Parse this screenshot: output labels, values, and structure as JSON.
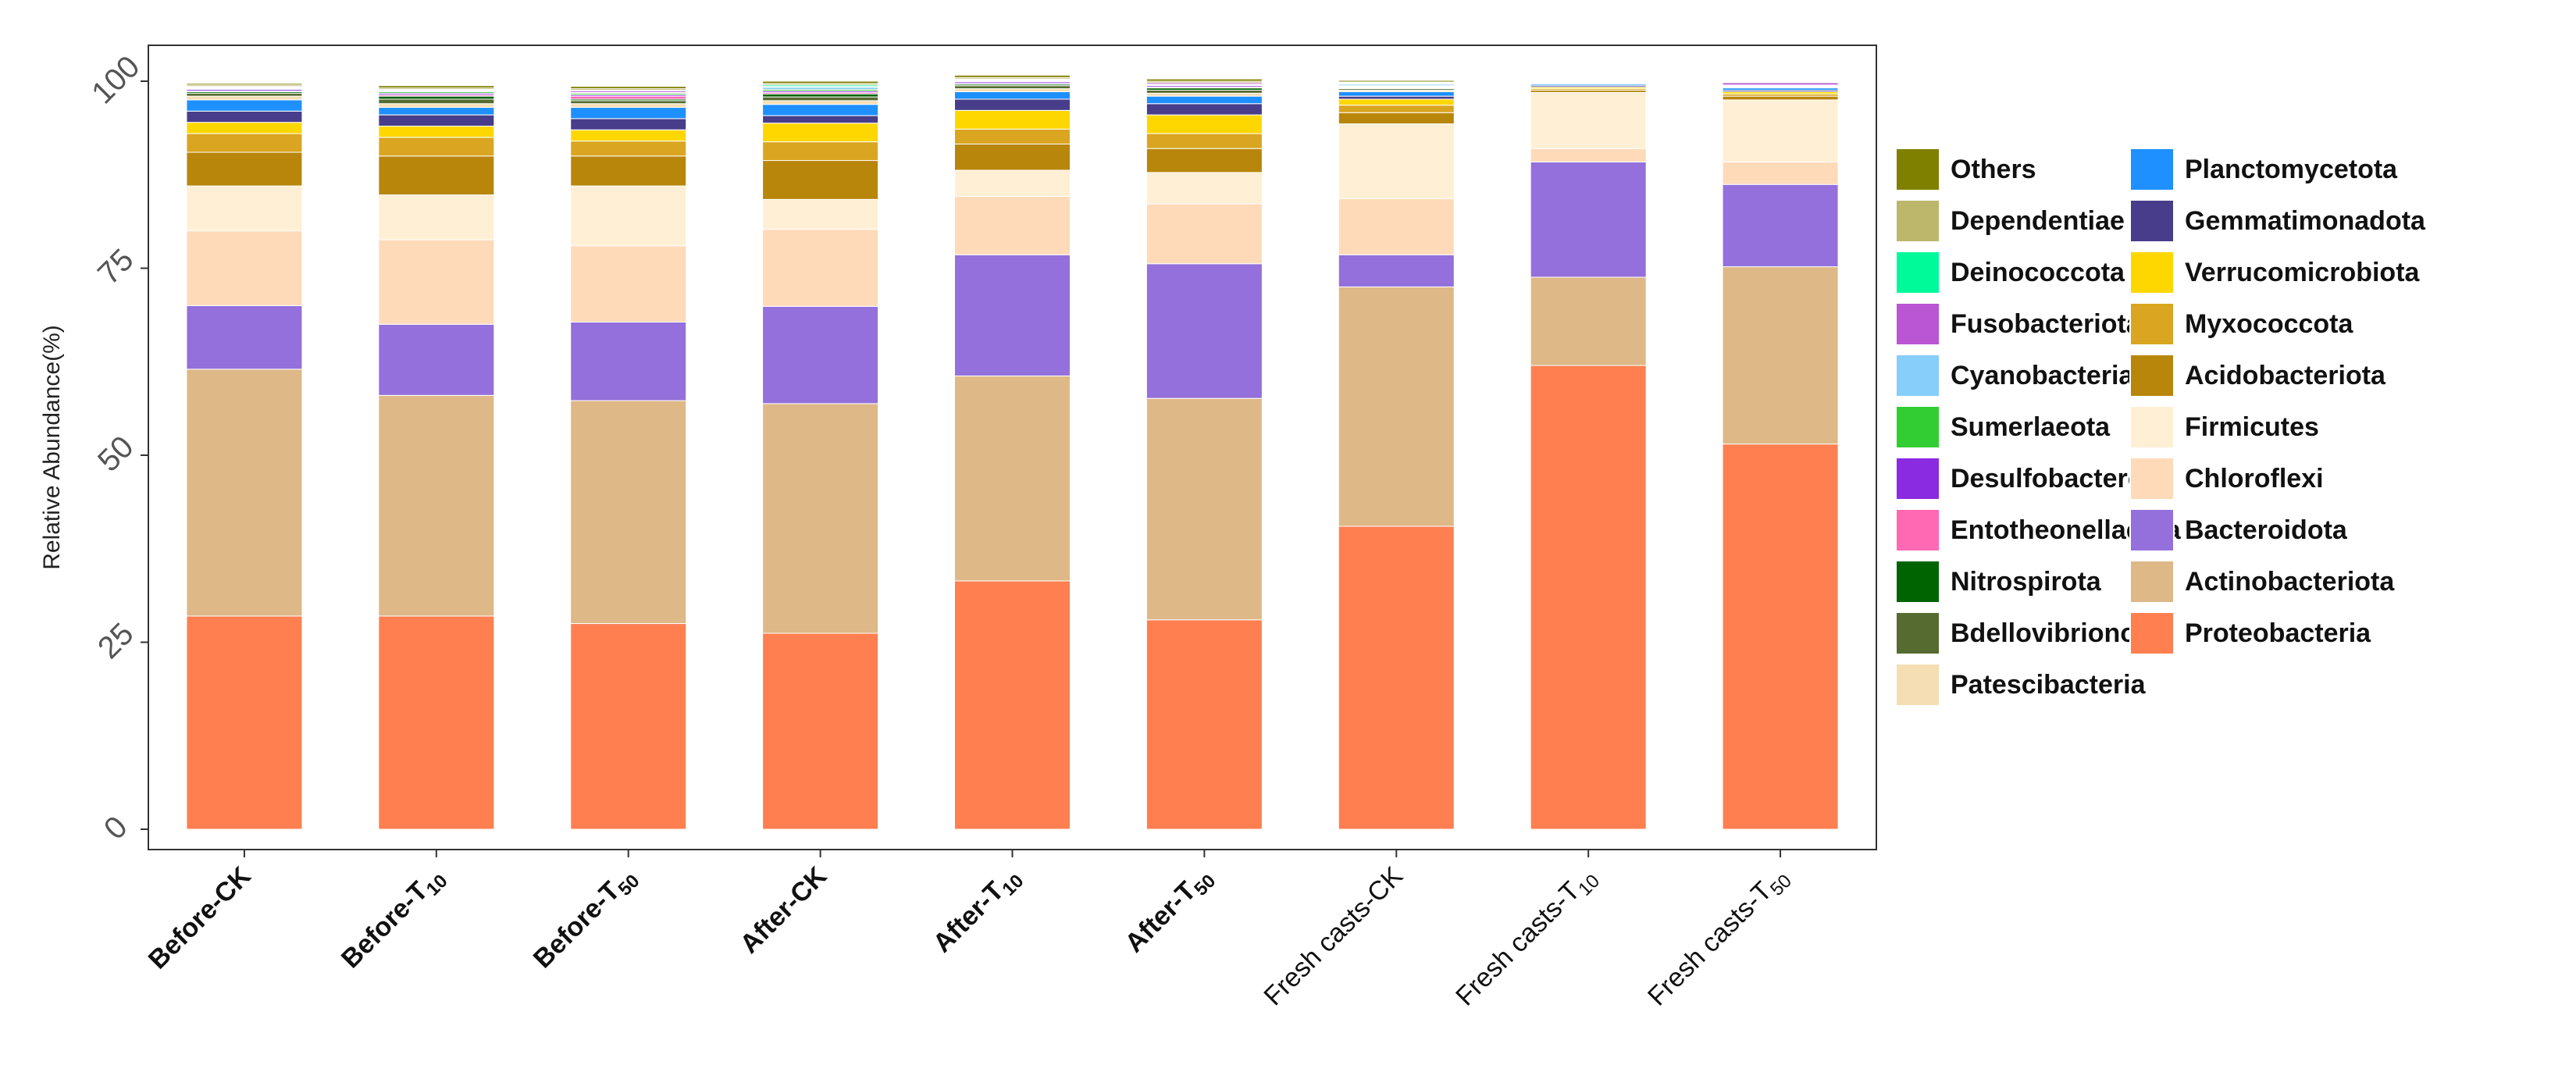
{
  "chart_data": {
    "type": "bar",
    "stacked": true,
    "ylabel": "Relative Abundance(%)",
    "xlabel": "",
    "ylim": [
      0,
      100
    ],
    "yticks": [
      "0",
      "25",
      "50",
      "75",
      "100"
    ],
    "ytick_values": [
      0,
      25,
      50,
      75,
      100
    ],
    "categories": [
      {
        "prefix": "Before-",
        "main": "CK",
        "sub": "",
        "bold": true
      },
      {
        "prefix": "Before-",
        "main": "T",
        "sub": "10",
        "bold": true
      },
      {
        "prefix": "Before-",
        "main": "T",
        "sub": "50",
        "bold": true
      },
      {
        "prefix": "After-",
        "main": "CK",
        "sub": "",
        "bold": true
      },
      {
        "prefix": "After-",
        "main": "T",
        "sub": "10",
        "bold": true
      },
      {
        "prefix": "After-",
        "main": "T",
        "sub": "50",
        "bold": true
      },
      {
        "prefix": "Fresh casts-",
        "main": "CK",
        "sub": "",
        "bold": false
      },
      {
        "prefix": "Fresh casts-",
        "main": "T",
        "sub": "10",
        "bold": false
      },
      {
        "prefix": "Fresh casts-",
        "main": "T",
        "sub": "50",
        "bold": false
      }
    ],
    "series": [
      {
        "name": "Proteobacteria",
        "color": "#FF7F50",
        "values": [
          28.5,
          28.5,
          27.5,
          26.2,
          33.2,
          28.0,
          40.5,
          62.0,
          51.5
        ]
      },
      {
        "name": "Actinobacteriota",
        "color": "#DEB887",
        "values": [
          33.0,
          29.5,
          29.8,
          30.7,
          27.4,
          29.6,
          32.0,
          11.8,
          23.7
        ]
      },
      {
        "name": "Bacteroidota",
        "color": "#9370DB",
        "values": [
          8.5,
          9.5,
          10.5,
          13.0,
          16.2,
          18.0,
          4.3,
          15.4,
          11.0
        ]
      },
      {
        "name": "Chloroflexi",
        "color": "#FFDAB9",
        "values": [
          10.0,
          11.3,
          10.2,
          10.3,
          7.8,
          8.0,
          7.5,
          1.8,
          3.0
        ]
      },
      {
        "name": "Firmicutes",
        "color": "#FFEFD5",
        "values": [
          6.0,
          6.0,
          8.0,
          4.0,
          3.5,
          4.2,
          10.0,
          7.5,
          8.3
        ]
      },
      {
        "name": "Acidobacteriota",
        "color": "#B8860B",
        "values": [
          4.5,
          5.2,
          4.0,
          5.2,
          3.5,
          3.2,
          1.5,
          0.3,
          0.5
        ]
      },
      {
        "name": "Myxococcota",
        "color": "#DAA520",
        "values": [
          2.5,
          2.5,
          2.0,
          2.5,
          2.0,
          2.0,
          1.0,
          0.2,
          0.3
        ]
      },
      {
        "name": "Verrucomicrobiota",
        "color": "#FFD700",
        "values": [
          1.5,
          1.5,
          1.5,
          2.5,
          2.5,
          2.5,
          0.8,
          0.2,
          0.3
        ]
      },
      {
        "name": "Gemmatimonadota",
        "color": "#483D8B",
        "values": [
          1.5,
          1.5,
          1.5,
          1.0,
          1.5,
          1.5,
          0.4,
          0.2,
          0.2
        ]
      },
      {
        "name": "Planctomycetota",
        "color": "#1E90FF",
        "values": [
          1.5,
          1.0,
          1.5,
          1.5,
          1.0,
          1.0,
          0.6,
          0.2,
          0.3
        ]
      },
      {
        "name": "Patescibacteria",
        "color": "#F5DEB3",
        "values": [
          0.5,
          0.5,
          0.5,
          0.5,
          0.4,
          0.4,
          0.2,
          0.1,
          0.1
        ]
      },
      {
        "name": "Bdellovibrionota",
        "color": "#556B2F",
        "values": [
          0.4,
          0.6,
          0.4,
          0.5,
          0.4,
          0.4,
          0.2,
          0.1,
          0.1
        ]
      },
      {
        "name": "Nitrospirota",
        "color": "#006400",
        "values": [
          0.2,
          0.4,
          0.2,
          0.4,
          0.2,
          0.3,
          0.1,
          0.0,
          0.0
        ]
      },
      {
        "name": "Entotheonellaeota",
        "color": "#FF69B4",
        "values": [
          0.1,
          0.2,
          0.4,
          0.2,
          0.1,
          0.1,
          0.1,
          0.0,
          0.1
        ]
      },
      {
        "name": "Desulfobacterota",
        "color": "#8A2BE2",
        "values": [
          0.2,
          0.2,
          0.2,
          0.2,
          0.2,
          0.2,
          0.1,
          0.1,
          0.1
        ]
      },
      {
        "name": "Sumerlaeota",
        "color": "#32CD32",
        "values": [
          0.1,
          0.2,
          0.2,
          0.2,
          0.1,
          0.1,
          0.1,
          0.0,
          0.0
        ]
      },
      {
        "name": "Cyanobacteria",
        "color": "#87CEFA",
        "values": [
          0.1,
          0.1,
          0.1,
          0.3,
          0.1,
          0.1,
          0.2,
          0.0,
          0.0
        ]
      },
      {
        "name": "Fusobacteriota",
        "color": "#BA55D3",
        "values": [
          0.1,
          0.1,
          0.2,
          0.1,
          0.1,
          0.2,
          0.1,
          0.1,
          0.3
        ]
      },
      {
        "name": "Deinococcota",
        "color": "#00FA9A",
        "values": [
          0.1,
          0.1,
          0.1,
          0.2,
          0.1,
          0.0,
          0.1,
          0.0,
          0.0
        ]
      },
      {
        "name": "Dependentiae",
        "color": "#BDB76B",
        "values": [
          0.2,
          0.2,
          0.2,
          0.2,
          0.2,
          0.2,
          0.1,
          0.0,
          0.1
        ]
      },
      {
        "name": "Others",
        "color": "#808000",
        "values": [
          0.2,
          0.3,
          0.3,
          0.3,
          0.3,
          0.3,
          0.2,
          0.0,
          0.1
        ]
      }
    ],
    "legend": {
      "placement": "right",
      "columns": [
        [
          "Others",
          "Dependentiae",
          "Deinococcota",
          "Fusobacteriota",
          "Cyanobacteria",
          "Sumerlaeota",
          "Desulfobacterota",
          "Entotheonellaeota",
          "Nitrospirota",
          "Bdellovibrionota",
          "Patescibacteria"
        ],
        [
          "Planctomycetota",
          "Gemmatimonadota",
          "Verrucomicrobiota",
          "Myxococcota",
          "Acidobacteriota",
          "Firmicutes",
          "Chloroflexi",
          "Bacteroidota",
          "Actinobacteriota",
          "Proteobacteria"
        ]
      ]
    },
    "grid": false
  }
}
